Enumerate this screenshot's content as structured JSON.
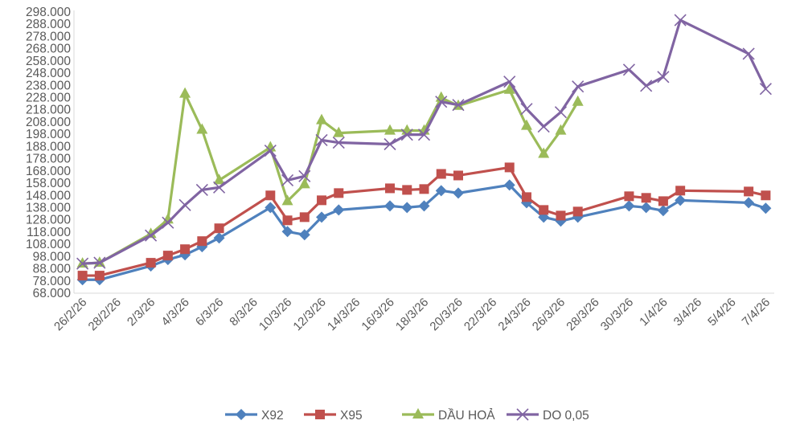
{
  "chart_data": {
    "type": "line",
    "title": "",
    "xlabel": "",
    "ylabel": "",
    "ylim": [
      68000,
      298000
    ],
    "y_step": 10000,
    "grid": false,
    "legend_placement": "bottom",
    "categories": [
      "26/2/26",
      "27/2/26",
      "28/2/26",
      "1/3/26",
      "2/3/26",
      "3/3/26",
      "4/3/26",
      "5/3/26",
      "6/3/26",
      "7/3/26",
      "8/3/26",
      "9/3/26",
      "10/3/26",
      "11/3/26",
      "12/3/26",
      "13/3/26",
      "14/3/26",
      "15/3/26",
      "16/3/26",
      "17/3/26",
      "18/3/26",
      "19/3/26",
      "20/3/26",
      "21/3/26",
      "22/3/26",
      "23/3/26",
      "24/3/26",
      "25/3/26",
      "26/3/26",
      "27/3/26",
      "28/3/26",
      "29/3/26",
      "30/3/26",
      "31/3/26",
      "1/4/26",
      "2/4/26",
      "3/4/26",
      "4/4/26",
      "5/4/26",
      "6/4/26",
      "7/4/26"
    ],
    "x_tick_labels": [
      "26/2/26",
      "28/2/26",
      "2/3/26",
      "4/3/26",
      "6/3/26",
      "8/3/26",
      "10/3/26",
      "12/3/26",
      "14/3/26",
      "16/3/26",
      "18/3/26",
      "20/3/26",
      "22/3/26",
      "24/3/26",
      "26/3/26",
      "28/3/26",
      "30/3/26",
      "1/4/26",
      "3/4/26",
      "5/4/26",
      "7/4/26"
    ],
    "y_tick_labels": [
      "298.000",
      "288.000",
      "278.000",
      "268.000",
      "258.000",
      "248.000",
      "238.000",
      "228.000",
      "218.000",
      "208.000",
      "198.000",
      "188.000",
      "178.000",
      "168.000",
      "158.000",
      "148.000",
      "138.000",
      "128.000",
      "118.000",
      "108.000",
      "98.000",
      "88.000",
      "78.000",
      "68.000"
    ],
    "series": [
      {
        "name": "X92",
        "color": "#4F81BD",
        "marker": "diamond",
        "points": [
          [
            "26/2/26",
            79000
          ],
          [
            "27/2/26",
            79000
          ],
          [
            "2/3/26",
            90300
          ],
          [
            "3/3/26",
            95500
          ],
          [
            "4/3/26",
            99400
          ],
          [
            "5/3/26",
            106000
          ],
          [
            "6/3/26",
            113200
          ],
          [
            "9/3/26",
            138100
          ],
          [
            "10/3/26",
            118400
          ],
          [
            "11/3/26",
            115800
          ],
          [
            "12/3/26",
            130200
          ],
          [
            "13/3/26",
            136100
          ],
          [
            "16/3/26",
            139400
          ],
          [
            "17/3/26",
            138100
          ],
          [
            "18/3/26",
            139400
          ],
          [
            "19/3/26",
            151900
          ],
          [
            "20/3/26",
            149900
          ],
          [
            "23/3/26",
            156500
          ],
          [
            "24/3/26",
            142000
          ],
          [
            "25/3/26",
            130200
          ],
          [
            "26/3/26",
            127000
          ],
          [
            "27/3/26",
            130200
          ],
          [
            "30/3/26",
            139400
          ],
          [
            "31/3/26",
            138100
          ],
          [
            "1/4/26",
            135500
          ],
          [
            "2/4/26",
            144000
          ],
          [
            "6/4/26",
            142000
          ],
          [
            "7/4/26",
            137500
          ]
        ]
      },
      {
        "name": "X95",
        "color": "#C0504D",
        "marker": "square",
        "points": [
          [
            "26/2/26",
            82400
          ],
          [
            "27/2/26",
            82400
          ],
          [
            "2/3/26",
            92900
          ],
          [
            "3/3/26",
            98800
          ],
          [
            "4/3/26",
            104000
          ],
          [
            "5/3/26",
            110600
          ],
          [
            "6/3/26",
            121100
          ],
          [
            "9/3/26",
            148000
          ],
          [
            "10/3/26",
            127600
          ],
          [
            "11/3/26",
            130200
          ],
          [
            "12/3/26",
            144000
          ],
          [
            "13/3/26",
            149900
          ],
          [
            "16/3/26",
            153800
          ],
          [
            "17/3/26",
            152500
          ],
          [
            "18/3/26",
            153200
          ],
          [
            "19/3/26",
            165600
          ],
          [
            "20/3/26",
            164300
          ],
          [
            "23/3/26",
            170900
          ],
          [
            "24/3/26",
            146600
          ],
          [
            "25/3/26",
            136100
          ],
          [
            "26/3/26",
            131500
          ],
          [
            "27/3/26",
            134800
          ],
          [
            "30/3/26",
            147300
          ],
          [
            "31/3/26",
            146000
          ],
          [
            "1/4/26",
            143300
          ],
          [
            "2/4/26",
            151900
          ],
          [
            "6/4/26",
            151200
          ],
          [
            "7/4/26",
            148000
          ]
        ]
      },
      {
        "name": "DẦU HOẢ",
        "color": "#9BBB59",
        "marker": "triangle",
        "points": [
          [
            "26/2/26",
            92200
          ],
          [
            "27/2/26",
            92900
          ],
          [
            "2/3/26",
            116500
          ],
          [
            "3/3/26",
            128300
          ],
          [
            "4/3/26",
            231200
          ],
          [
            "5/3/26",
            201700
          ],
          [
            "6/3/26",
            160400
          ],
          [
            "9/3/26",
            187300
          ],
          [
            "10/3/26",
            143300
          ],
          [
            "11/3/26",
            157100
          ],
          [
            "12/3/26",
            209500
          ],
          [
            "13/3/26",
            199000
          ],
          [
            "16/3/26",
            201000
          ],
          [
            "17/3/26",
            201000
          ],
          [
            "18/3/26",
            201000
          ],
          [
            "19/3/26",
            227900
          ],
          [
            "20/3/26",
            221300
          ],
          [
            "23/3/26",
            234400
          ],
          [
            "24/3/26",
            204900
          ],
          [
            "25/3/26",
            182000
          ],
          [
            "26/3/26",
            201000
          ],
          [
            "27/3/26",
            224600
          ]
        ]
      },
      {
        "name": "DO 0,05",
        "color": "#8064A2",
        "marker": "x",
        "points": [
          [
            "26/2/26",
            92200
          ],
          [
            "27/2/26",
            92900
          ],
          [
            "2/3/26",
            115200
          ],
          [
            "3/3/26",
            125700
          ],
          [
            "4/3/26",
            140100
          ],
          [
            "5/3/26",
            152500
          ],
          [
            "6/3/26",
            154500
          ],
          [
            "9/3/26",
            184600
          ],
          [
            "10/3/26",
            160400
          ],
          [
            "11/3/26",
            163700
          ],
          [
            "12/3/26",
            193200
          ],
          [
            "13/3/26",
            191200
          ],
          [
            "16/3/26",
            189900
          ],
          [
            "17/3/26",
            197700
          ],
          [
            "18/3/26",
            197700
          ],
          [
            "19/3/26",
            224600
          ],
          [
            "20/3/26",
            222000
          ],
          [
            "23/3/26",
            241000
          ],
          [
            "24/3/26",
            218700
          ],
          [
            "25/3/26",
            204300
          ],
          [
            "26/3/26",
            216100
          ],
          [
            "27/3/26",
            237100
          ],
          [
            "30/3/26",
            250800
          ],
          [
            "31/3/26",
            237700
          ],
          [
            "1/4/26",
            244900
          ],
          [
            "2/4/26",
            291400
          ],
          [
            "6/4/26",
            263900
          ],
          [
            "7/4/26",
            235100
          ]
        ]
      }
    ]
  }
}
